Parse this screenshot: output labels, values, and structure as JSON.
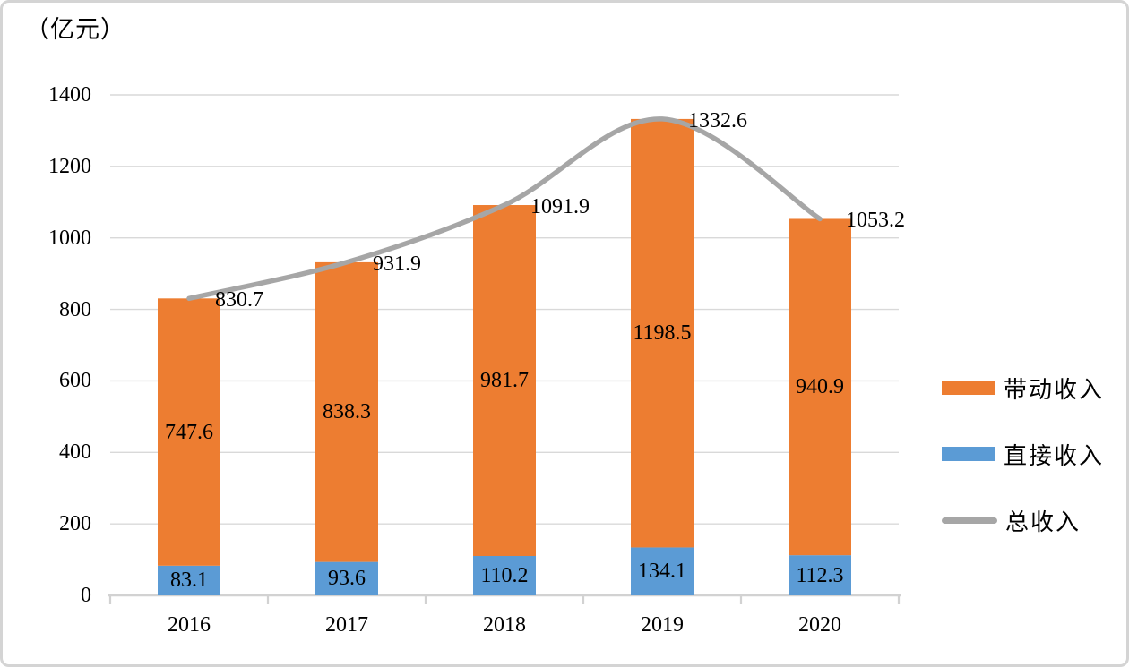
{
  "chart_data": {
    "type": "bar",
    "subtype": "stacked-bars-with-line",
    "title": "（亿元）",
    "categories": [
      "2016",
      "2017",
      "2018",
      "2019",
      "2020"
    ],
    "series": [
      {
        "name": "直接收入",
        "type": "bar",
        "stack_order": 0,
        "color": "#5b9bd5",
        "values": [
          83.1,
          93.6,
          110.2,
          134.1,
          112.3
        ]
      },
      {
        "name": "带动收入",
        "type": "bar",
        "stack_order": 1,
        "color": "#ed7d31",
        "values": [
          747.6,
          838.3,
          981.7,
          1198.5,
          940.9
        ]
      },
      {
        "name": "总收入",
        "type": "line",
        "color": "#a6a6a6",
        "values": [
          830.7,
          931.9,
          1091.9,
          1332.6,
          1053.2
        ]
      }
    ],
    "ylim": [
      0,
      1400
    ],
    "y_step": 200,
    "y_tick_labels": [
      "0",
      "200",
      "400",
      "600",
      "800",
      "1000",
      "1200",
      "1400"
    ],
    "ylabel": "（亿元）",
    "xlabel": "",
    "grid": true,
    "gridline_color": "#d9d9d9",
    "axis_line_color": "#d2d2d2",
    "label_color": "#000000",
    "legend_position": "right",
    "legend_order": [
      "带动收入",
      "直接收入",
      "总收入"
    ]
  }
}
